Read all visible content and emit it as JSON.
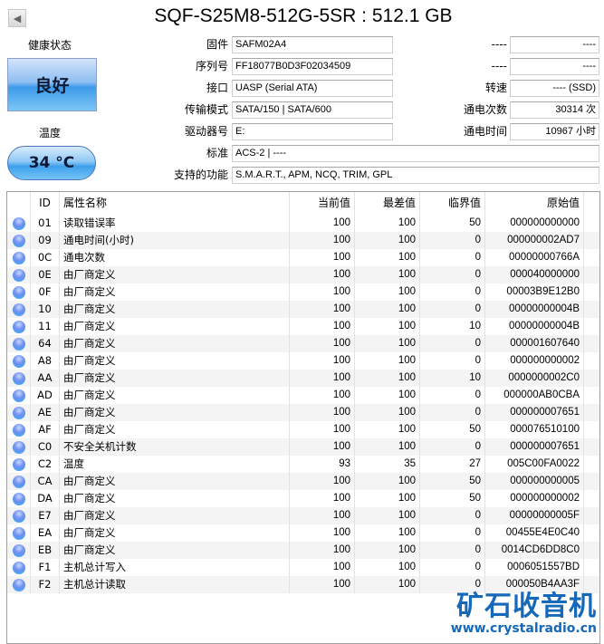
{
  "title": "SQF-S25M8-512G-5SR : 512.1 GB",
  "health": {
    "label": "健康状态",
    "value": "良好",
    "color": "#3d9be9"
  },
  "temperature": {
    "label": "温度",
    "value": "34 °C"
  },
  "fields": {
    "firmware": {
      "label": "固件",
      "value": "SAFM02A4"
    },
    "serial": {
      "label": "序列号",
      "value": "FF18077B0D3F02034509"
    },
    "interface": {
      "label": "接口",
      "value": "UASP (Serial ATA)"
    },
    "transfer": {
      "label": "传输模式",
      "value": "SATA/150 | SATA/600"
    },
    "drive": {
      "label": "驱动器号",
      "value": "E:"
    },
    "standard": {
      "label": "标准",
      "value": "ACS-2 | ----"
    },
    "features": {
      "label": "支持的功能",
      "value": "S.M.A.R.T., APM, NCQ, TRIM, GPL"
    },
    "r1": {
      "label": "----",
      "value": "----"
    },
    "r2": {
      "label": "----",
      "value": "----"
    },
    "rotation": {
      "label": "转速",
      "value": "---- (SSD)"
    },
    "power_count": {
      "label": "通电次数",
      "value": "30314 次"
    },
    "power_hours": {
      "label": "通电时间",
      "value": "10967 小时"
    }
  },
  "table": {
    "headers": [
      "",
      "ID",
      "属性名称",
      "当前值",
      "最差值",
      "临界值",
      "原始值"
    ],
    "rows": [
      [
        "01",
        "读取错误率",
        "100",
        "100",
        "50",
        "000000000000"
      ],
      [
        "09",
        "通电时间(小时)",
        "100",
        "100",
        "0",
        "000000002AD7"
      ],
      [
        "0C",
        "通电次数",
        "100",
        "100",
        "0",
        "00000000766A"
      ],
      [
        "0E",
        "由厂商定义",
        "100",
        "100",
        "0",
        "000040000000"
      ],
      [
        "0F",
        "由厂商定义",
        "100",
        "100",
        "0",
        "00003B9E12B0"
      ],
      [
        "10",
        "由厂商定义",
        "100",
        "100",
        "0",
        "00000000004B"
      ],
      [
        "11",
        "由厂商定义",
        "100",
        "100",
        "10",
        "00000000004B"
      ],
      [
        "64",
        "由厂商定义",
        "100",
        "100",
        "0",
        "000001607640"
      ],
      [
        "A8",
        "由厂商定义",
        "100",
        "100",
        "0",
        "000000000002"
      ],
      [
        "AA",
        "由厂商定义",
        "100",
        "100",
        "10",
        "0000000002C0"
      ],
      [
        "AD",
        "由厂商定义",
        "100",
        "100",
        "0",
        "000000AB0CBA"
      ],
      [
        "AE",
        "由厂商定义",
        "100",
        "100",
        "0",
        "000000007651"
      ],
      [
        "AF",
        "由厂商定义",
        "100",
        "100",
        "50",
        "000076510100"
      ],
      [
        "C0",
        "不安全关机计数",
        "100",
        "100",
        "0",
        "000000007651"
      ],
      [
        "C2",
        "温度",
        "93",
        "35",
        "27",
        "005C00FA0022"
      ],
      [
        "CA",
        "由厂商定义",
        "100",
        "100",
        "50",
        "000000000005"
      ],
      [
        "DA",
        "由厂商定义",
        "100",
        "100",
        "50",
        "000000000002"
      ],
      [
        "E7",
        "由厂商定义",
        "100",
        "100",
        "0",
        "00000000005F"
      ],
      [
        "EA",
        "由厂商定义",
        "100",
        "100",
        "0",
        "00455E4E0C40"
      ],
      [
        "EB",
        "由厂商定义",
        "100",
        "100",
        "0",
        "0014CD6DD8C0"
      ],
      [
        "F1",
        "主机总计写入",
        "100",
        "100",
        "0",
        "0006051557BD"
      ],
      [
        "F2",
        "主机总计读取",
        "100",
        "100",
        "0",
        "000050B4AA3F"
      ]
    ],
    "status_icon": "blue-circle-good"
  },
  "watermark": {
    "cn": "矿石收音机",
    "url": "www.crystalradio.cn"
  }
}
